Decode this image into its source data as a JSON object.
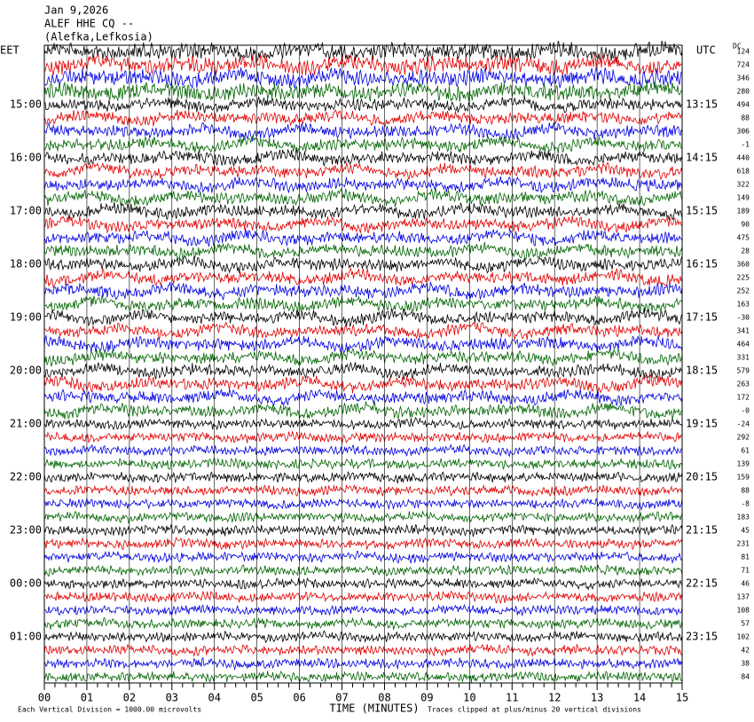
{
  "header": {
    "date": "Jan 9,2026",
    "station": "ALEF HHE CQ --",
    "location": "(Alefka,Lefkosia)"
  },
  "left_zone": "EET",
  "right_zone": "UTC",
  "dc_title": "DC",
  "left_times": [
    "15:00",
    "16:00",
    "17:00",
    "18:00",
    "19:00",
    "20:00",
    "21:00",
    "22:00",
    "23:00",
    "00:00",
    "01:00"
  ],
  "right_times": [
    "13:15",
    "14:15",
    "15:15",
    "16:15",
    "17:15",
    "18:15",
    "19:15",
    "20:15",
    "21:15",
    "22:15",
    "23:15"
  ],
  "dc_offsets": [
    "124",
    "724",
    "346",
    "280",
    "494",
    "88",
    "306",
    "-1",
    "440",
    "618",
    "322",
    "149",
    "189",
    "90",
    "475",
    "28",
    "360",
    "225",
    "252",
    "163",
    "-30",
    "341",
    "464",
    "331",
    "579",
    "263",
    "172",
    "-0",
    "-24",
    "292",
    "61",
    "139",
    "159",
    "88",
    "-8",
    "183",
    "45",
    "231",
    "81",
    "71",
    "46",
    "137",
    "108",
    "57",
    "102",
    "42",
    "38",
    "84"
  ],
  "x_ticks": [
    "00",
    "01",
    "02",
    "03",
    "04",
    "05",
    "06",
    "07",
    "08",
    "09",
    "10",
    "11",
    "12",
    "13",
    "14",
    "15"
  ],
  "x_label": "TIME (MINUTES)",
  "scale_note": "Each Vertical Division = 1000.00 microvolts",
  "clip_note": "Traces clipped at plus/minus 20 vertical divisions"
}
